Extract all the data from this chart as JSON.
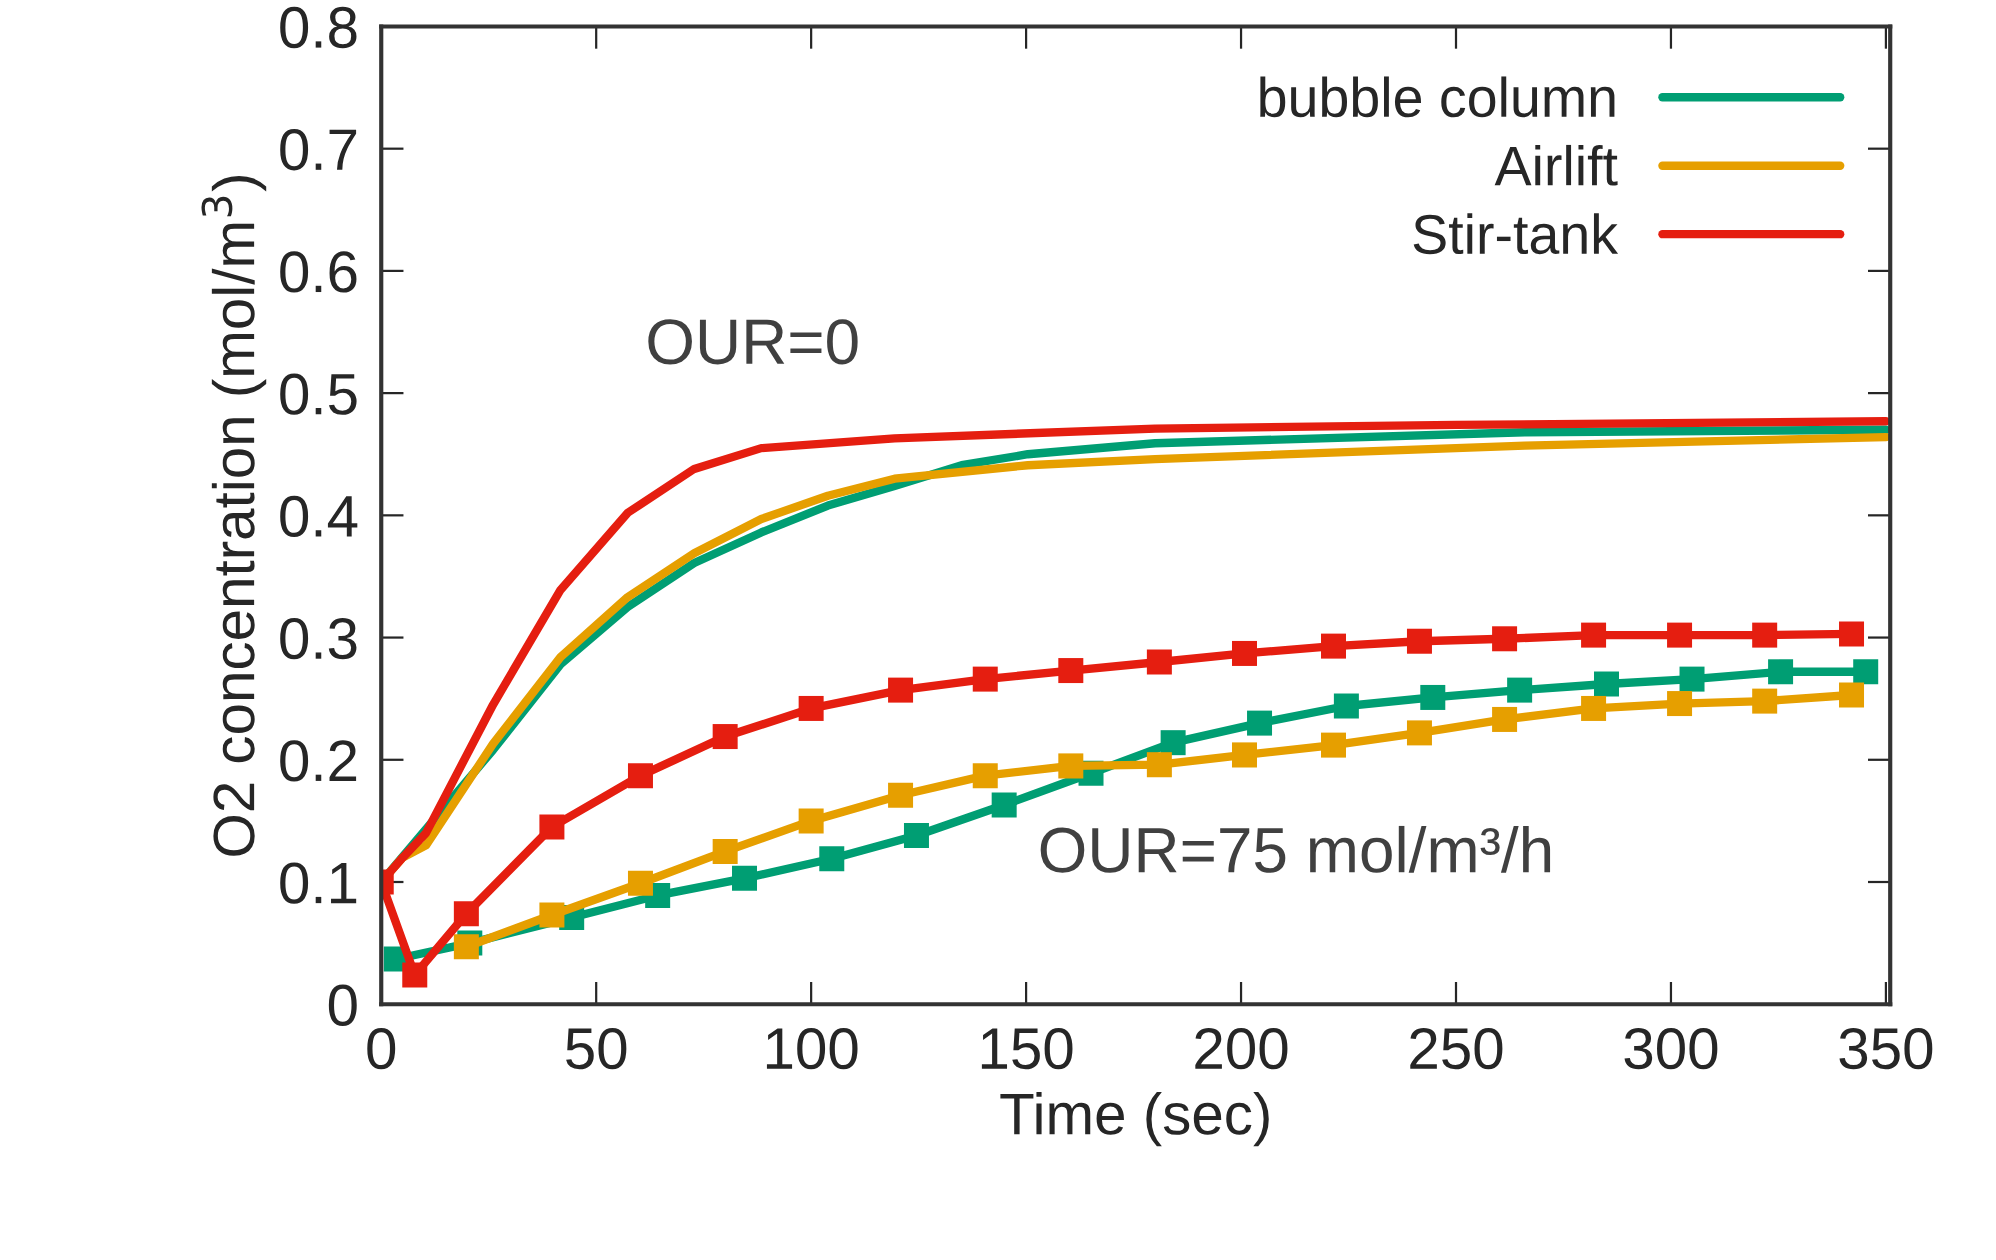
{
  "chart_data": {
    "type": "line",
    "xlabel": "Time (sec)",
    "ylabel": "O2 concentration (mol/m$^{3}$)",
    "xlim": [
      0,
      351
    ],
    "ylim": [
      0,
      0.8
    ],
    "xticks": [
      0,
      50,
      100,
      150,
      200,
      250,
      300,
      350
    ],
    "yticks": [
      0,
      0.1,
      0.2,
      0.3,
      0.4,
      0.5,
      0.6,
      0.7,
      0.8
    ],
    "grid": false,
    "legend": "top right",
    "annotations": [
      "OUR=0",
      "OUR=75 mol/m³/h"
    ],
    "series": [
      {
        "name": "bubble column",
        "color": "#009e73",
        "marker": "none",
        "x": [
          0,
          26,
          41.7,
          57.3,
          72.8,
          88.4,
          103.9,
          119.4,
          135,
          150.4,
          180,
          266,
          350
        ],
        "values": [
          0.1,
          0.208,
          0.278,
          0.325,
          0.361,
          0.386,
          0.408,
          0.424,
          0.441,
          0.45,
          0.459,
          0.468,
          0.47
        ]
      },
      {
        "name": "Airlift",
        "color": "#e69f00",
        "marker": "none",
        "x": [
          0,
          5,
          10.4,
          26,
          41.7,
          57.3,
          72.8,
          88.4,
          103.9,
          119.4,
          150.4,
          180,
          266,
          350
        ],
        "values": [
          0.1,
          0.12,
          0.13,
          0.213,
          0.284,
          0.333,
          0.369,
          0.397,
          0.416,
          0.43,
          0.441,
          0.446,
          0.457,
          0.464
        ]
      },
      {
        "name": "Stir-tank",
        "color": "#e51e10",
        "marker": "none",
        "x": [
          0,
          5,
          10.4,
          26,
          41.7,
          57.3,
          72.8,
          88.4,
          119.4,
          180,
          250,
          350
        ],
        "values": [
          0.1,
          0.12,
          0.14,
          0.245,
          0.339,
          0.402,
          0.438,
          0.455,
          0.463,
          0.471,
          0.474,
          0.477
        ]
      },
      {
        "color": "#009e73",
        "marker": "square",
        "x": [
          3.5,
          20.6,
          44.3,
          64.3,
          84.5,
          104.8,
          124.5,
          144.9,
          165.1,
          184.2,
          204.3,
          224.5,
          244.6,
          264.8,
          285,
          304.9,
          325.5,
          345.3
        ],
        "values": [
          0.037,
          0.05,
          0.071,
          0.089,
          0.103,
          0.119,
          0.138,
          0.163,
          0.189,
          0.214,
          0.23,
          0.244,
          0.251,
          0.257,
          0.262,
          0.266,
          0.272,
          0.272
        ]
      },
      {
        "color": "#e69f00",
        "marker": "square",
        "x": [
          19.8,
          39.7,
          60.3,
          80,
          100,
          120.8,
          140.5,
          160.4,
          181,
          200.8,
          221.5,
          241.5,
          261.3,
          282,
          302,
          321.8,
          342
        ],
        "values": [
          0.047,
          0.073,
          0.099,
          0.125,
          0.15,
          0.171,
          0.187,
          0.195,
          0.196,
          0.204,
          0.212,
          0.222,
          0.233,
          0.242,
          0.246,
          0.248,
          0.253
        ]
      },
      {
        "color": "#e51e10",
        "marker": "square",
        "x": [
          0,
          7.8,
          19.8,
          39.7,
          60.3,
          80,
          100,
          120.8,
          140.5,
          160.4,
          181,
          200.8,
          221.5,
          241.5,
          261.3,
          282,
          302,
          321.8,
          342
        ],
        "values": [
          0.1,
          0.024,
          0.074,
          0.145,
          0.187,
          0.219,
          0.242,
          0.257,
          0.266,
          0.273,
          0.28,
          0.287,
          0.293,
          0.297,
          0.299,
          0.302,
          0.302,
          0.302,
          0.303
        ]
      }
    ]
  }
}
